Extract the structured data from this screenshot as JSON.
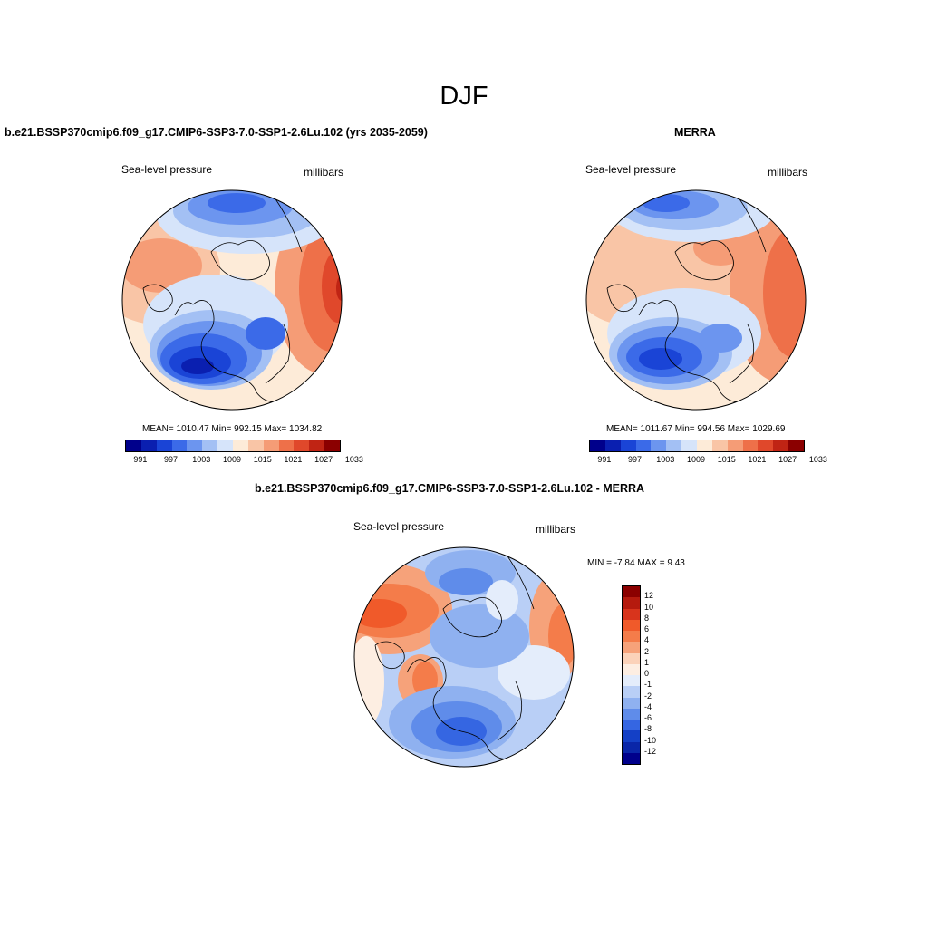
{
  "main_title": "DJF",
  "panels": {
    "model": {
      "title": "b.e21.BSSP370cmip6.f09_g17.CMIP6-SSP3-7.0-SSP1-2.6Lu.102 (yrs 2035-2059)",
      "variable": "Sea-level pressure",
      "units": "millibars",
      "stats": "MEAN= 1010.47  Min= 992.15  Max= 1034.82",
      "colorbar_ticks": [
        "991",
        "997",
        "1003",
        "1009",
        "1015",
        "1021",
        "1027",
        "1033"
      ]
    },
    "obs": {
      "title": "MERRA",
      "variable": "Sea-level pressure",
      "units": "millibars",
      "stats": "MEAN= 1011.67  Min= 994.56  Max= 1029.69",
      "colorbar_ticks": [
        "991",
        "997",
        "1003",
        "1009",
        "1015",
        "1021",
        "1027",
        "1033"
      ]
    },
    "diff": {
      "title": "b.e21.BSSP370cmip6.f09_g17.CMIP6-SSP3-7.0-SSP1-2.6Lu.102 - MERRA",
      "variable": "Sea-level pressure",
      "units": "millibars",
      "stats": "MIN =  -7.84 MAX =   9.43",
      "colorbar_ticks": [
        "12",
        "10",
        "8",
        "6",
        "4",
        "2",
        "1",
        "0",
        "-1",
        "-2",
        "-4",
        "-6",
        "-8",
        "-10",
        "-12"
      ]
    }
  },
  "colors": {
    "abs_palette": [
      "#00008b",
      "#0a1fb0",
      "#1a44d6",
      "#3b6ae8",
      "#6c95ef",
      "#a3c0f4",
      "#d6e4fa",
      "#fdebd8",
      "#f9c5a6",
      "#f59c76",
      "#ee7049",
      "#e0482b",
      "#c02414",
      "#8b0000"
    ],
    "diff_palette": [
      "#8b0000",
      "#b51a0e",
      "#d8341c",
      "#f05a2a",
      "#f47c4a",
      "#f6a27a",
      "#fbd2b9",
      "#fdeee2",
      "#e4edfb",
      "#b9cff6",
      "#8fb1f0",
      "#5f8cea",
      "#3566e2",
      "#1440c6",
      "#0a26a8",
      "#00008b"
    ],
    "coastline": "#000000"
  }
}
